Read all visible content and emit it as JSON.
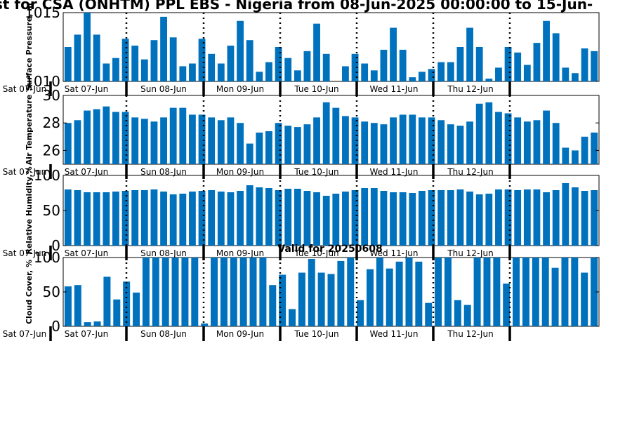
{
  "figure": {
    "title": "st for CSA (ONHTM) PPL EBS - Nigeria from 08-Jun-2025 00:00:00 to 15-Jun-",
    "valid_label": "Valid for 20250608"
  },
  "colors": {
    "bar": "#0072bd",
    "axis": "#000000"
  },
  "chart_data": [
    {
      "type": "bar",
      "ylabel": "Surface Pressure, m",
      "ylim": [
        1010,
        1015
      ],
      "yticks": [
        1010,
        1015
      ],
      "xticks": [
        "Sat 07-Jun",
        "Sat 07-Jun",
        "Sun 08-Jun",
        "Mon 09-Jun",
        "Tue 10-Jun",
        "Wed 11-Jun",
        "Thu 12-Jun"
      ],
      "values": [
        1012.5,
        1013.4,
        1015.0,
        1013.4,
        1011.3,
        1011.7,
        1013.1,
        1012.6,
        1011.6,
        1013.0,
        1014.7,
        1013.2,
        1011.1,
        1011.3,
        1013.1,
        1012.0,
        1011.3,
        1012.6,
        1014.4,
        1013.0,
        1010.7,
        1011.4,
        1012.5,
        1011.7,
        1010.8,
        1012.2,
        1014.2,
        1012.0,
        1010.0,
        1011.1,
        1012.0,
        1011.3,
        1010.8,
        1012.3,
        1013.9,
        1012.3,
        1010.3,
        1010.7,
        1010.9,
        1011.4,
        1011.4,
        1012.5,
        1013.9,
        1012.5,
        1010.2,
        1011.0,
        1012.5,
        1012.1,
        1011.2,
        1012.8,
        1014.4,
        1013.5,
        1011.0,
        1010.6,
        1012.4,
        1012.2
      ]
    },
    {
      "type": "bar",
      "ylabel": "Air Temperature",
      "ylim": [
        25,
        30
      ],
      "yticks": [
        26,
        28,
        30
      ],
      "xticks": [
        "Sat 07-Jun",
        "Sat 07-Jun",
        "Sun 08-Jun",
        "Mon 09-Jun",
        "Tue 10-Jun",
        "Wed 11-Jun",
        "Thu 12-Jun"
      ],
      "values": [
        28.0,
        28.2,
        28.9,
        29.0,
        29.2,
        28.8,
        28.8,
        28.4,
        28.3,
        28.1,
        28.4,
        29.1,
        29.1,
        28.6,
        28.6,
        28.4,
        28.2,
        28.4,
        28.0,
        26.5,
        27.3,
        27.4,
        28.0,
        27.8,
        27.7,
        27.9,
        28.4,
        29.5,
        29.1,
        28.5,
        28.4,
        28.1,
        28.0,
        27.9,
        28.4,
        28.6,
        28.6,
        28.4,
        28.4,
        28.2,
        27.9,
        27.8,
        28.1,
        29.4,
        29.5,
        28.8,
        28.7,
        28.4,
        28.1,
        28.2,
        28.9,
        28.0,
        26.2,
        26.0,
        27.0,
        27.3
      ]
    },
    {
      "type": "bar",
      "ylabel": "Relative Humidity,%",
      "ylim": [
        0,
        100
      ],
      "yticks": [
        0,
        50,
        100
      ],
      "xticks": [
        "Sat 07-Jun",
        "Sat 07-Jun",
        "Sun 08-Jun",
        "Mon 09-Jun",
        "Tue 10-Jun",
        "Wed 11-Jun",
        "Thu 12-Jun"
      ],
      "values": [
        80,
        79,
        76,
        76,
        76,
        77,
        78,
        79,
        79,
        80,
        77,
        73,
        74,
        77,
        78,
        79,
        77,
        76,
        78,
        86,
        83,
        82,
        79,
        81,
        81,
        78,
        76,
        71,
        74,
        77,
        79,
        82,
        82,
        78,
        76,
        76,
        75,
        78,
        79,
        79,
        79,
        80,
        77,
        73,
        74,
        80,
        80,
        79,
        80,
        80,
        76,
        79,
        89,
        83,
        78,
        79
      ]
    },
    {
      "type": "bar",
      "ylabel": "Cloud Cover, %",
      "ylim": [
        0,
        100
      ],
      "yticks": [
        0,
        50,
        100
      ],
      "xticks": [
        "Sat 07-Jun",
        "Sat 07-Jun",
        "Sun 08-Jun",
        "Mon 09-Jun",
        "Tue 10-Jun",
        "Wed 11-Jun",
        "Thu 12-Jun"
      ],
      "values": [
        58,
        60,
        6,
        7,
        72,
        39,
        65,
        49,
        100,
        100,
        100,
        100,
        100,
        100,
        4,
        100,
        100,
        100,
        100,
        100,
        100,
        60,
        75,
        25,
        78,
        98,
        78,
        76,
        95,
        100,
        38,
        83,
        100,
        84,
        94,
        100,
        94,
        34,
        100,
        100,
        38,
        31,
        100,
        100,
        100,
        62,
        100,
        100,
        100,
        100,
        85,
        100,
        100,
        78,
        100
      ]
    }
  ]
}
